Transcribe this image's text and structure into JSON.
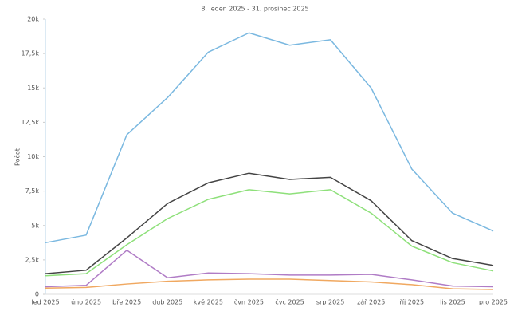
{
  "chart_data": {
    "type": "line",
    "subtitle": "8. leden 2025 - 31. prosinec 2025",
    "y_label": "Počet",
    "categories": [
      "led 2025",
      "úno 2025",
      "bře 2025",
      "dub 2025",
      "kvě 2025",
      "čvn 2025",
      "čvc 2025",
      "srp 2025",
      "zář 2025",
      "říj 2025",
      "lis 2025",
      "pro 2025"
    ],
    "series": [
      {
        "color": "#7ab8e0",
        "values": [
          3750,
          4300,
          11600,
          14300,
          17600,
          19000,
          18100,
          18500,
          15000,
          9100,
          5900,
          4600
        ]
      },
      {
        "color": "#444444",
        "values": [
          1500,
          1750,
          4100,
          6600,
          8100,
          8800,
          8350,
          8500,
          6800,
          3900,
          2600,
          2100
        ]
      },
      {
        "color": "#8ee07a",
        "values": [
          1350,
          1500,
          3600,
          5500,
          6900,
          7600,
          7300,
          7600,
          5900,
          3500,
          2300,
          1700
        ]
      },
      {
        "color": "#b07cc6",
        "values": [
          550,
          650,
          3200,
          1200,
          1550,
          1500,
          1400,
          1400,
          1450,
          1050,
          600,
          550
        ]
      },
      {
        "color": "#f0a860",
        "values": [
          450,
          500,
          750,
          950,
          1050,
          1100,
          1100,
          1000,
          900,
          700,
          400,
          350
        ]
      }
    ],
    "ylim": [
      0,
      20000
    ],
    "yticks": [
      0,
      {
        "value": 2500,
        "label": "2,5k"
      },
      {
        "value": 5000,
        "label": "5k"
      },
      {
        "value": 7500,
        "label": "7,5k"
      },
      {
        "value": 10000,
        "label": "10k"
      },
      {
        "value": 12500,
        "label": "12,5k"
      },
      {
        "value": 15000,
        "label": "15k"
      },
      {
        "value": 17500,
        "label": "17,5k"
      },
      {
        "value": 20000,
        "label": "20k"
      }
    ],
    "grid": false
  }
}
